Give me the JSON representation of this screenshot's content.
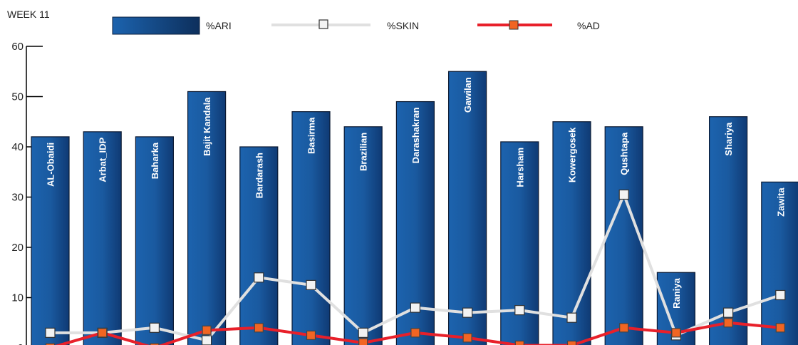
{
  "chart_data": {
    "type": "bar",
    "title": "WEEK 11",
    "categories": [
      "AL-Obaidi",
      "Arbat_IDP",
      "Baharka",
      "Bajit Kandala",
      "Bardarash",
      "Basirma",
      "Brazilian",
      "Darashakran",
      "Gawilan",
      "Harsham",
      "Kowergosek",
      "Qushtapa",
      "Raniya",
      "Shariya",
      "Zawita"
    ],
    "series": [
      {
        "name": "%ARI",
        "type": "bar",
        "values": [
          42,
          43,
          42,
          51,
          40,
          47,
          44,
          49,
          55,
          41,
          45,
          44,
          15,
          46,
          33
        ]
      },
      {
        "name": "%SKIN",
        "type": "line",
        "values": [
          3,
          3,
          4,
          1.5,
          14,
          12.5,
          3,
          8,
          7,
          7.5,
          6,
          30.5,
          2.5,
          7,
          10.5
        ]
      },
      {
        "name": "%AD",
        "type": "line",
        "values": [
          0,
          3,
          0,
          3.5,
          4,
          2.5,
          1,
          3,
          2,
          0.5,
          0.5,
          4,
          3,
          5,
          4
        ]
      }
    ],
    "y_ticks": [
      0,
      10,
      20,
      30,
      40,
      50,
      60
    ],
    "ylim": [
      0,
      60
    ],
    "grid": false,
    "legend_position": "top",
    "colors": {
      "bar": "#1a5fa8",
      "bar_dark": "#0d2f5c",
      "skin": "#e0e0e0",
      "skin_marker": "#f2f2f2",
      "ad": "#e8202a",
      "ad_marker": "#f26522",
      "axis": "#000000"
    }
  }
}
